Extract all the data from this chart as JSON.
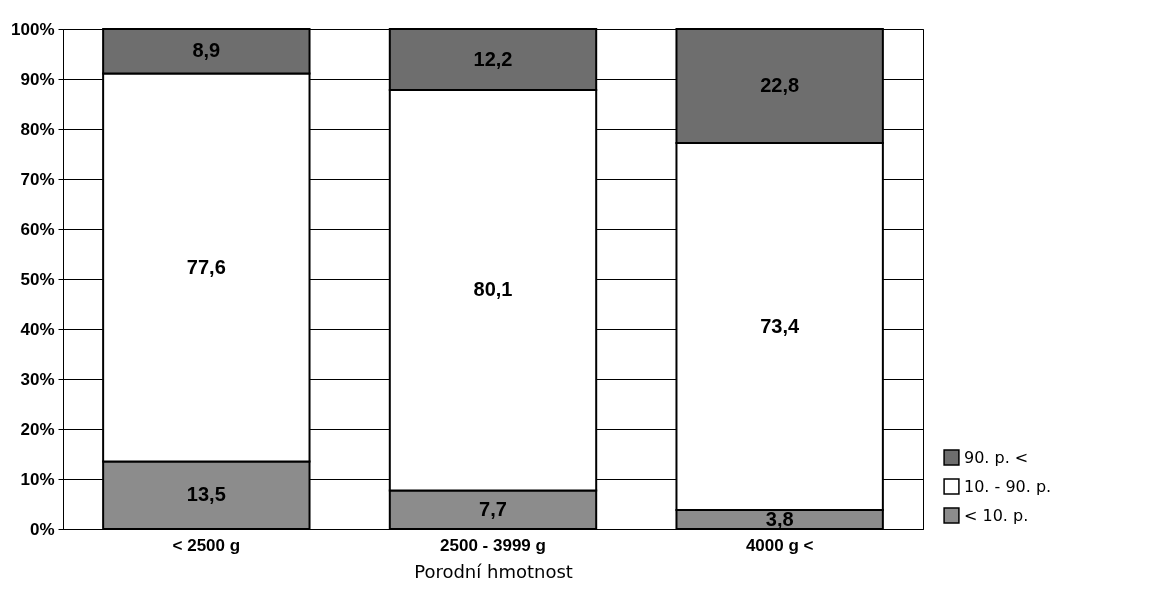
{
  "chart_data": {
    "type": "bar",
    "stacked": true,
    "xlabel": "Porodní hmotnost",
    "categories": [
      "< 2500 g",
      "2500 - 3999 g",
      "4000 g <"
    ],
    "series": [
      {
        "name": "< 10. p.",
        "color": "#8c8c8c",
        "values": [
          13.5,
          7.7,
          3.8
        ],
        "value_labels": [
          "13,5",
          "7,7",
          "3,8"
        ]
      },
      {
        "name": "10. - 90. p.",
        "color": "#ffffff",
        "values": [
          77.6,
          80.1,
          73.4
        ],
        "value_labels": [
          "77,6",
          "80,1",
          "73,4"
        ]
      },
      {
        "name": "90. p. <",
        "color": "#6e6e6e",
        "values": [
          8.9,
          12.2,
          22.8
        ],
        "value_labels": [
          "8,9",
          "12,2",
          "22,8"
        ]
      }
    ],
    "ylim": [
      0,
      100
    ],
    "yticks": [
      {
        "value": 0,
        "label": "0%"
      },
      {
        "value": 10,
        "label": "10%"
      },
      {
        "value": 20,
        "label": "20%"
      },
      {
        "value": 30,
        "label": "30%"
      },
      {
        "value": 40,
        "label": "40%"
      },
      {
        "value": 50,
        "label": "50%"
      },
      {
        "value": 60,
        "label": "60%"
      },
      {
        "value": 70,
        "label": "70%"
      },
      {
        "value": 80,
        "label": "80%"
      },
      {
        "value": 90,
        "label": "90%"
      },
      {
        "value": 100,
        "label": "100%"
      }
    ],
    "grid": "y",
    "legend": "bottom right"
  }
}
